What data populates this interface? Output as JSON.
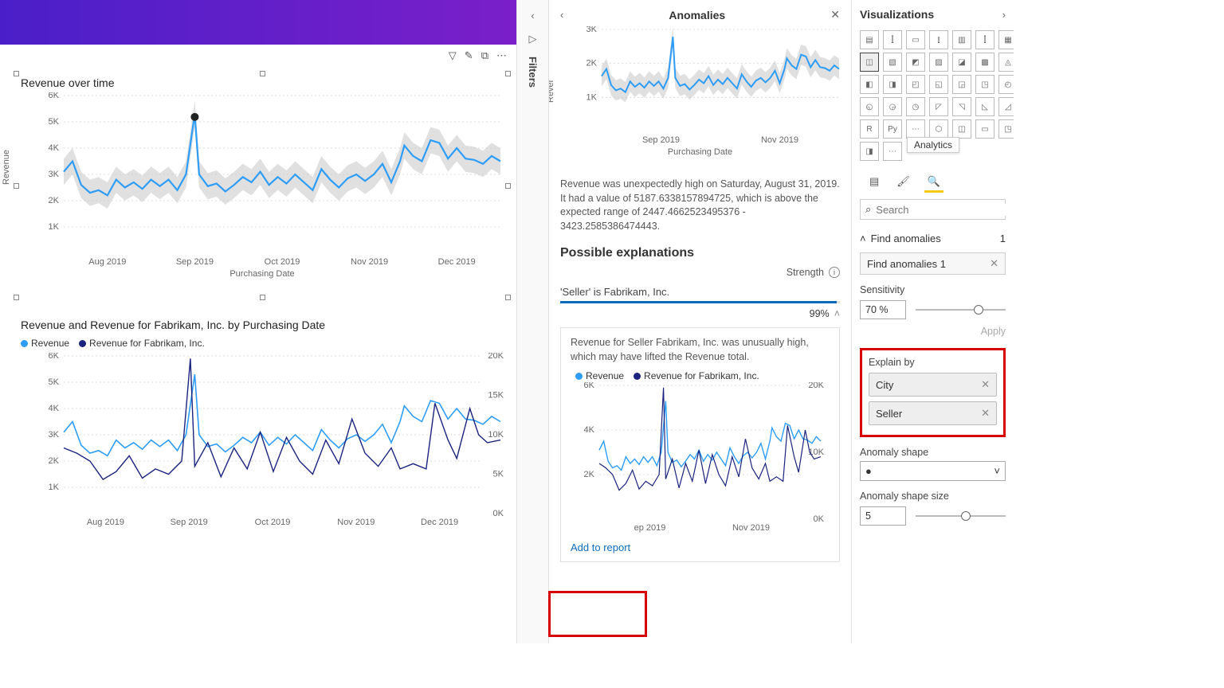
{
  "colors": {
    "series_primary": "#2e9df7",
    "series_secondary": "#1a237e",
    "confidence_band": "#c6c6c6",
    "grid": "#dcdcdc",
    "axis_text": "#666666",
    "purple_grad_start": "#4a1fc9",
    "purple_grad_end": "#7a1fc9",
    "link": "#0f6cbd",
    "highlight_red": "#d60000",
    "viz_yellow": "#f2c811"
  },
  "chart1": {
    "title": "Revenue over time",
    "y_label": "Revenue",
    "x_label": "Purchasing Date",
    "y_ticks": [
      "1K",
      "2K",
      "3K",
      "4K",
      "5K",
      "6K"
    ],
    "y_range": [
      0,
      6000
    ],
    "x_ticks": [
      "Aug 2019",
      "Sep 2019",
      "Oct 2019",
      "Nov 2019",
      "Dec 2019"
    ],
    "anomaly_point": {
      "x": 0.3,
      "y_val": 5187
    }
  },
  "chart2": {
    "title": "Revenue and Revenue for Fabrikam, Inc. by Purchasing Date",
    "legend": [
      {
        "label": "Revenue",
        "color": "#2e9df7"
      },
      {
        "label": "Revenue for Fabrikam, Inc.",
        "color": "#1a237e"
      }
    ],
    "y_left_ticks": [
      "1K",
      "2K",
      "3K",
      "4K",
      "5K",
      "6K"
    ],
    "y_right_ticks": [
      "0K",
      "5K",
      "10K",
      "15K",
      "20K"
    ],
    "x_ticks": [
      "Aug 2019",
      "Sep 2019",
      "Oct 2019",
      "Nov 2019",
      "Dec 2019"
    ]
  },
  "filters_label": "Filters",
  "anomalies": {
    "title": "Anomalies",
    "mini_chart": {
      "y_label": "Rever",
      "y_ticks": [
        "1K",
        "2K",
        "3K"
      ],
      "x_ticks": [
        "Sep 2019",
        "Nov 2019"
      ],
      "x_label": "Purchasing Date"
    },
    "explanation_text": "Revenue was unexpectedly high on Saturday, August 31, 2019. It had a value of 5187.6338157894725, which is above the expected range of 2447.4662523495376 - 3423.2585386474443.",
    "possible_title": "Possible explanations",
    "strength_label": "Strength",
    "rule_text": "'Seller' is Fabrikam, Inc.",
    "strength_pct": "99%",
    "card_text": "Revenue for Seller Fabrikam, Inc. was unusually high, which may have lifted the Revenue total.",
    "card_legend": [
      {
        "label": "Revenue",
        "color": "#2e9df7"
      },
      {
        "label": "Revenue for Fabrikam, Inc.",
        "color": "#1a237e"
      }
    ],
    "card_y_left_ticks": [
      "2K",
      "4K",
      "6K"
    ],
    "card_y_right_ticks": [
      "0K",
      "10K",
      "20K"
    ],
    "card_x_ticks": [
      "ep 2019",
      "Nov 2019"
    ],
    "add_link": "Add to report"
  },
  "viz": {
    "title": "Visualizations",
    "tooltip": "Analytics",
    "search_placeholder": "Search",
    "find_header": "Find anomalies",
    "find_count": "1",
    "item_name": "Find anomalies 1",
    "sensitivity_label": "Sensitivity",
    "sensitivity_value": "70",
    "sensitivity_unit": "%",
    "apply_label": "Apply",
    "explain_label": "Explain by",
    "explain_tags": [
      "City",
      "Seller"
    ],
    "shape_label": "Anomaly shape",
    "shape_value": "●",
    "shape_size_label": "Anomaly shape size",
    "shape_size_value": "5"
  },
  "noise_line": {
    "points": [
      [
        0,
        3100
      ],
      [
        0.02,
        3500
      ],
      [
        0.04,
        2600
      ],
      [
        0.06,
        2300
      ],
      [
        0.08,
        2400
      ],
      [
        0.1,
        2200
      ],
      [
        0.12,
        2800
      ],
      [
        0.14,
        2500
      ],
      [
        0.16,
        2700
      ],
      [
        0.18,
        2450
      ],
      [
        0.2,
        2800
      ],
      [
        0.22,
        2550
      ],
      [
        0.24,
        2800
      ],
      [
        0.26,
        2400
      ],
      [
        0.28,
        3000
      ],
      [
        0.3,
        5300
      ],
      [
        0.31,
        3000
      ],
      [
        0.33,
        2550
      ],
      [
        0.35,
        2650
      ],
      [
        0.37,
        2350
      ],
      [
        0.39,
        2600
      ],
      [
        0.41,
        2900
      ],
      [
        0.43,
        2700
      ],
      [
        0.45,
        3100
      ],
      [
        0.47,
        2600
      ],
      [
        0.49,
        2900
      ],
      [
        0.51,
        2650
      ],
      [
        0.53,
        3000
      ],
      [
        0.55,
        2700
      ],
      [
        0.57,
        2400
      ],
      [
        0.59,
        3200
      ],
      [
        0.61,
        2800
      ],
      [
        0.63,
        2500
      ],
      [
        0.65,
        2850
      ],
      [
        0.67,
        3000
      ],
      [
        0.69,
        2750
      ],
      [
        0.71,
        3000
      ],
      [
        0.73,
        3400
      ],
      [
        0.75,
        2700
      ],
      [
        0.77,
        3500
      ],
      [
        0.78,
        4100
      ],
      [
        0.8,
        3700
      ],
      [
        0.82,
        3500
      ],
      [
        0.84,
        4300
      ],
      [
        0.86,
        4200
      ],
      [
        0.88,
        3600
      ],
      [
        0.9,
        4000
      ],
      [
        0.92,
        3600
      ],
      [
        0.94,
        3550
      ],
      [
        0.96,
        3400
      ],
      [
        0.98,
        3700
      ],
      [
        1.0,
        3500
      ]
    ]
  },
  "noise_line2": {
    "points": [
      [
        0,
        2500
      ],
      [
        0.03,
        2300
      ],
      [
        0.06,
        2000
      ],
      [
        0.09,
        1300
      ],
      [
        0.12,
        1600
      ],
      [
        0.15,
        2200
      ],
      [
        0.18,
        1350
      ],
      [
        0.21,
        1700
      ],
      [
        0.24,
        1500
      ],
      [
        0.27,
        2000
      ],
      [
        0.29,
        5900
      ],
      [
        0.3,
        1800
      ],
      [
        0.33,
        2700
      ],
      [
        0.36,
        1400
      ],
      [
        0.39,
        2500
      ],
      [
        0.42,
        1700
      ],
      [
        0.45,
        3100
      ],
      [
        0.48,
        1600
      ],
      [
        0.51,
        2900
      ],
      [
        0.54,
        2000
      ],
      [
        0.57,
        1500
      ],
      [
        0.6,
        2800
      ],
      [
        0.63,
        1900
      ],
      [
        0.66,
        3600
      ],
      [
        0.69,
        2300
      ],
      [
        0.72,
        1800
      ],
      [
        0.75,
        2500
      ],
      [
        0.77,
        1700
      ],
      [
        0.8,
        1900
      ],
      [
        0.83,
        1700
      ],
      [
        0.85,
        4200
      ],
      [
        0.88,
        2800
      ],
      [
        0.9,
        2100
      ],
      [
        0.93,
        4000
      ],
      [
        0.95,
        3000
      ],
      [
        0.97,
        2700
      ],
      [
        1.0,
        2800
      ]
    ]
  }
}
